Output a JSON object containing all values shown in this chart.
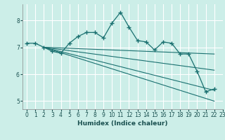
{
  "title": "",
  "xlabel": "Humidex (Indice chaleur)",
  "xlim": [
    -0.5,
    23
  ],
  "ylim": [
    4.7,
    8.6
  ],
  "xticks": [
    0,
    1,
    2,
    3,
    4,
    5,
    6,
    7,
    8,
    9,
    10,
    11,
    12,
    13,
    14,
    15,
    16,
    17,
    18,
    19,
    20,
    21,
    22,
    23
  ],
  "yticks": [
    5,
    6,
    7,
    8
  ],
  "bg_color": "#cceee8",
  "grid_color": "#ffffff",
  "line_color": "#1a7070",
  "main_line": {
    "x": [
      0,
      1,
      2,
      3,
      4,
      5,
      6,
      7,
      8,
      9,
      10,
      11,
      12,
      13,
      14,
      15,
      16,
      17,
      18,
      19,
      20,
      21,
      22
    ],
    "y": [
      7.15,
      7.15,
      7.0,
      6.85,
      6.78,
      7.15,
      7.4,
      7.55,
      7.55,
      7.35,
      7.9,
      8.3,
      7.75,
      7.25,
      7.2,
      6.9,
      7.2,
      7.15,
      6.75,
      6.75,
      6.1,
      5.35,
      5.45
    ]
  },
  "trend_lines": [
    {
      "x": [
        2,
        22
      ],
      "y": [
        7.0,
        6.75
      ]
    },
    {
      "x": [
        2,
        22
      ],
      "y": [
        7.0,
        6.15
      ]
    },
    {
      "x": [
        2,
        22
      ],
      "y": [
        7.0,
        5.4
      ]
    },
    {
      "x": [
        2,
        22
      ],
      "y": [
        7.0,
        5.0
      ]
    }
  ]
}
